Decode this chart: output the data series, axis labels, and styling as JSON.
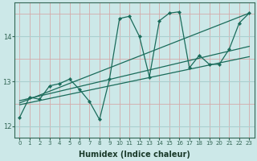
{
  "xlabel": "Humidex (Indice chaleur)",
  "bg_color": "#cce8e8",
  "grid_color_major": "#aacfcf",
  "grid_color_minor": "#d4aaaa",
  "line_color": "#1a6b5a",
  "xlim": [
    -0.5,
    23.5
  ],
  "ylim": [
    11.75,
    14.75
  ],
  "yticks": [
    12,
    13,
    14
  ],
  "xticks": [
    0,
    1,
    2,
    3,
    4,
    5,
    6,
    7,
    8,
    9,
    10,
    11,
    12,
    13,
    14,
    15,
    16,
    17,
    18,
    19,
    20,
    21,
    22,
    23
  ],
  "zigzag_x": [
    0,
    1,
    2,
    3,
    4,
    5,
    6,
    7,
    8,
    9,
    10,
    11,
    12,
    13,
    14,
    15,
    16,
    17,
    18,
    19,
    20,
    21,
    22,
    23
  ],
  "zigzag_y": [
    12.2,
    12.65,
    12.6,
    12.9,
    12.95,
    13.05,
    12.82,
    12.55,
    12.15,
    13.05,
    14.4,
    14.45,
    14.0,
    13.1,
    14.35,
    14.52,
    14.55,
    13.3,
    13.58,
    13.38,
    13.38,
    13.72,
    14.3,
    14.52
  ],
  "line1_x": [
    0,
    23
  ],
  "line1_y": [
    12.48,
    13.55
  ],
  "line2_x": [
    0,
    23
  ],
  "line2_y": [
    12.57,
    13.78
  ],
  "line3_x": [
    0,
    23
  ],
  "line3_y": [
    12.52,
    14.52
  ]
}
